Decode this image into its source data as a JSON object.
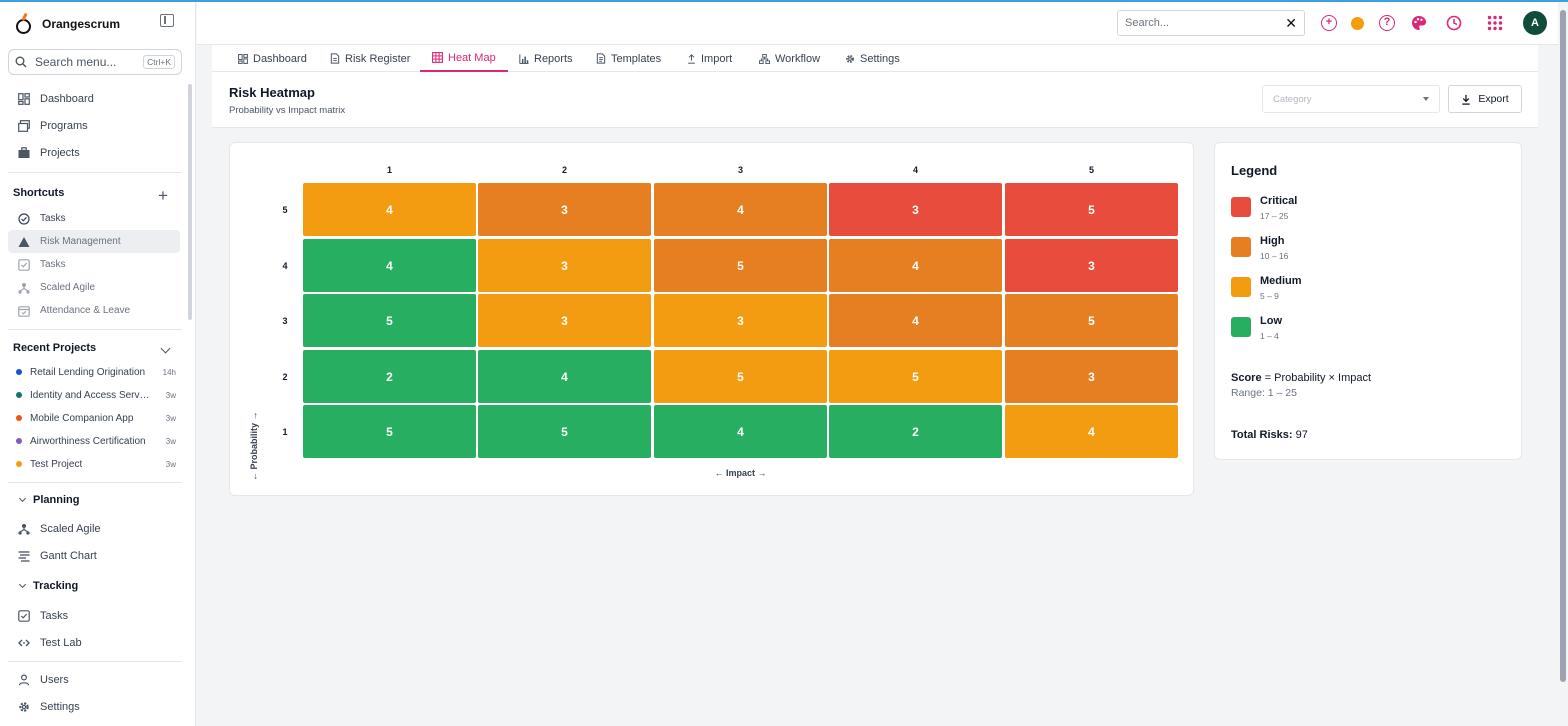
{
  "app": {
    "name": "Orangescrum"
  },
  "sidebar": {
    "search_placeholder": "Search menu...",
    "search_shortcut": "Ctrl+K",
    "main_items": [
      {
        "label": "Dashboard",
        "icon": "dashboard-icon"
      },
      {
        "label": "Programs",
        "icon": "programs-icon"
      },
      {
        "label": "Projects",
        "icon": "briefcase-icon"
      }
    ],
    "shortcuts_title": "Shortcuts",
    "shortcuts": [
      {
        "label": "Tasks",
        "icon": "check-circle-icon"
      },
      {
        "label": "Risk Management",
        "icon": "warning-icon"
      },
      {
        "label": "Tasks",
        "icon": "check-square-icon"
      },
      {
        "label": "Scaled Agile",
        "icon": "hierarchy-icon"
      },
      {
        "label": "Attendance & Leave",
        "icon": "calendar-icon"
      }
    ],
    "recent_title": "Recent Projects",
    "recent_projects": [
      {
        "name": "Retail Lending Origination",
        "time": "14h",
        "color": "#1d4ed8"
      },
      {
        "name": "Identity and Access Servi...",
        "time": "3w",
        "color": "#0f766e"
      },
      {
        "name": "Mobile Companion App",
        "time": "3w",
        "color": "#ea580c"
      },
      {
        "name": "Airworthiness Certification",
        "time": "3w",
        "color": "#7c5cbf"
      },
      {
        "name": "Test Project",
        "time": "3w",
        "color": "#f59e0b"
      }
    ],
    "planning_title": "Planning",
    "planning_items": [
      {
        "label": "Scaled Agile",
        "icon": "hierarchy-icon"
      },
      {
        "label": "Gantt Chart",
        "icon": "gantt-icon"
      }
    ],
    "tracking_title": "Tracking",
    "tracking_items": [
      {
        "label": "Tasks",
        "icon": "check-square-icon"
      },
      {
        "label": "Test Lab",
        "icon": "code-icon"
      }
    ],
    "bottom_items": [
      {
        "label": "Users",
        "icon": "user-icon"
      },
      {
        "label": "Settings",
        "icon": "gear-icon"
      }
    ]
  },
  "topbar": {
    "search_placeholder": "Search...",
    "avatar_initial": "A"
  },
  "tabs": [
    {
      "label": "Dashboard",
      "icon": "dashboard-icon"
    },
    {
      "label": "Risk Register",
      "icon": "document-icon"
    },
    {
      "label": "Heat Map",
      "icon": "grid-icon",
      "active": true
    },
    {
      "label": "Reports",
      "icon": "bar-chart-icon"
    },
    {
      "label": "Templates",
      "icon": "template-icon"
    },
    {
      "label": "Import",
      "icon": "upload-icon"
    },
    {
      "label": "Workflow",
      "icon": "workflow-icon"
    },
    {
      "label": "Settings",
      "icon": "gear-icon"
    }
  ],
  "header": {
    "title": "Risk Heatmap",
    "subtitle": "Probability vs Impact matrix",
    "category_placeholder": "Category",
    "export_label": "Export"
  },
  "heatmap": {
    "impact_labels": [
      "1",
      "2",
      "3",
      "4",
      "5"
    ],
    "probability_labels": [
      "5",
      "4",
      "3",
      "2",
      "1"
    ],
    "x_axis_label": "← Impact →",
    "y_axis_label": "← Probability →",
    "rows": [
      {
        "probability": "5",
        "cells": [
          {
            "count": "4",
            "level": "medium"
          },
          {
            "count": "3",
            "level": "high"
          },
          {
            "count": "4",
            "level": "high"
          },
          {
            "count": "3",
            "level": "critical"
          },
          {
            "count": "5",
            "level": "critical"
          }
        ]
      },
      {
        "probability": "4",
        "cells": [
          {
            "count": "4",
            "level": "low"
          },
          {
            "count": "3",
            "level": "medium"
          },
          {
            "count": "5",
            "level": "high"
          },
          {
            "count": "4",
            "level": "high"
          },
          {
            "count": "3",
            "level": "critical"
          }
        ]
      },
      {
        "probability": "3",
        "cells": [
          {
            "count": "5",
            "level": "low"
          },
          {
            "count": "3",
            "level": "medium"
          },
          {
            "count": "3",
            "level": "medium"
          },
          {
            "count": "4",
            "level": "high"
          },
          {
            "count": "5",
            "level": "high"
          }
        ]
      },
      {
        "probability": "2",
        "cells": [
          {
            "count": "2",
            "level": "low"
          },
          {
            "count": "4",
            "level": "low"
          },
          {
            "count": "5",
            "level": "medium"
          },
          {
            "count": "5",
            "level": "medium"
          },
          {
            "count": "3",
            "level": "high"
          }
        ]
      },
      {
        "probability": "1",
        "cells": [
          {
            "count": "5",
            "level": "low"
          },
          {
            "count": "5",
            "level": "low"
          },
          {
            "count": "4",
            "level": "low"
          },
          {
            "count": "2",
            "level": "low"
          },
          {
            "count": "4",
            "level": "medium"
          }
        ]
      }
    ],
    "colors": {
      "critical": "#e74c3c",
      "high": "#e67e22",
      "medium": "#f39c12",
      "low": "#27ae60"
    }
  },
  "legend": {
    "title": "Legend",
    "items": [
      {
        "name": "Critical",
        "range": "17 – 25",
        "color": "#e74c3c"
      },
      {
        "name": "High",
        "range": "10 – 16",
        "color": "#e67e22"
      },
      {
        "name": "Medium",
        "range": "5 – 9",
        "color": "#f39c12"
      },
      {
        "name": "Low",
        "range": "1 – 4",
        "color": "#27ae60"
      }
    ],
    "score_label": "Score",
    "score_formula": "= Probability × Impact",
    "range_text": "Range: 1 – 25",
    "total_label": "Total Risks:",
    "total_value": "97"
  }
}
